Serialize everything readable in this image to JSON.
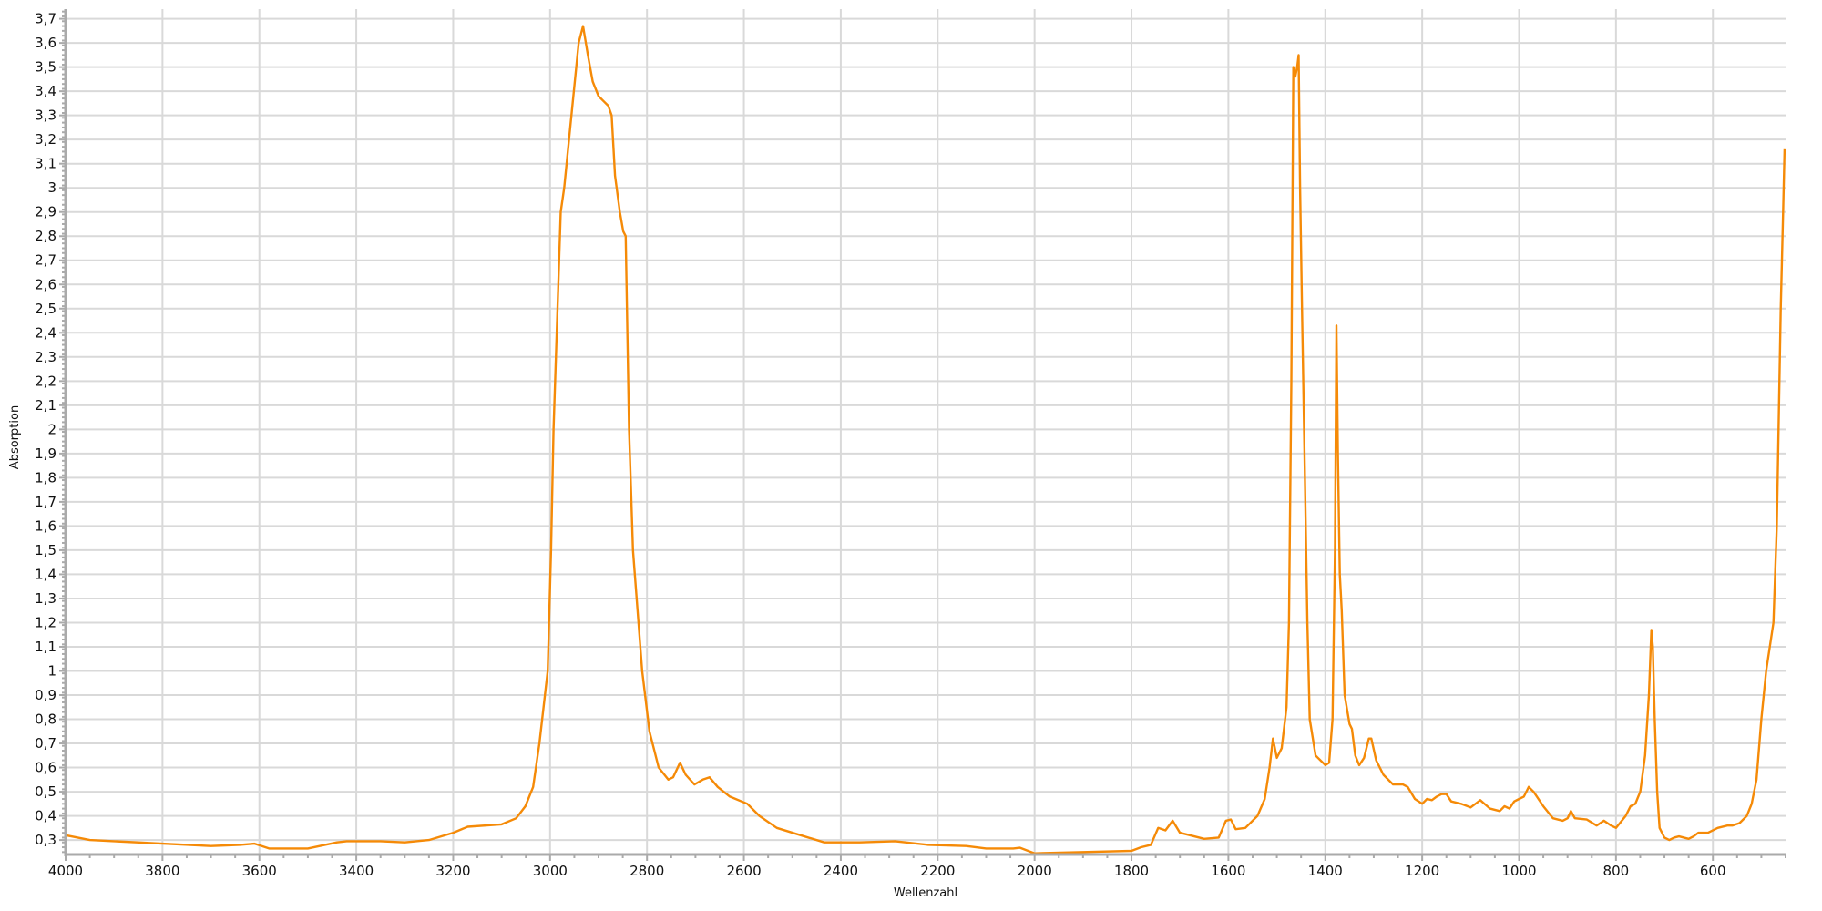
{
  "chart_data": {
    "type": "line",
    "title": "",
    "xlabel": "Wellenzahl",
    "ylabel": "Absorption",
    "xlim": [
      4000,
      450
    ],
    "x_reversed": true,
    "ylim": [
      0.24,
      3.74
    ],
    "x_ticks": [
      4000,
      3800,
      3600,
      3400,
      3200,
      3000,
      2800,
      2600,
      2400,
      2200,
      2000,
      1800,
      1600,
      1400,
      1200,
      1000,
      800,
      600
    ],
    "x_tick_labels": [
      "4000",
      "3800",
      "3600",
      "3400",
      "3200",
      "3000",
      "2800",
      "2600",
      "2400",
      "2200",
      "2000",
      "1800",
      "1600",
      "1400",
      "1200",
      "1000",
      "800",
      "600"
    ],
    "y_ticks": [
      0.3,
      0.4,
      0.5,
      0.6,
      0.7,
      0.8,
      0.9,
      1,
      1.1,
      1.2,
      1.3,
      1.4,
      1.5,
      1.6,
      1.7,
      1.8,
      1.9,
      2,
      2.1,
      2.2,
      2.3,
      2.4,
      2.5,
      2.6,
      2.7,
      2.8,
      2.9,
      3,
      3.1,
      3.2,
      3.3,
      3.4,
      3.5,
      3.6,
      3.7
    ],
    "y_tick_labels": [
      "0,3",
      "0,4",
      "0,5",
      "0,6",
      "0,7",
      "0,8",
      "0,9",
      "1",
      "1,1",
      "1,2",
      "1,3",
      "1,4",
      "1,5",
      "1,6",
      "1,7",
      "1,8",
      "1,9",
      "2",
      "2,1",
      "2,2",
      "2,3",
      "2,4",
      "2,5",
      "2,6",
      "2,7",
      "2,8",
      "2,9",
      "3",
      "3,1",
      "3,2",
      "3,3",
      "3,4",
      "3,5",
      "3,6",
      "3,7"
    ],
    "grid": true,
    "legend": "none",
    "series": [
      {
        "color": "#F58A07",
        "points": [
          [
            4000,
            0.32
          ],
          [
            3950,
            0.3
          ],
          [
            3900,
            0.295
          ],
          [
            3800,
            0.285
          ],
          [
            3700,
            0.275
          ],
          [
            3640,
            0.28
          ],
          [
            3610,
            0.285
          ],
          [
            3580,
            0.265
          ],
          [
            3500,
            0.265
          ],
          [
            3440,
            0.29
          ],
          [
            3420,
            0.295
          ],
          [
            3350,
            0.295
          ],
          [
            3300,
            0.29
          ],
          [
            3250,
            0.3
          ],
          [
            3200,
            0.33
          ],
          [
            3170,
            0.355
          ],
          [
            3100,
            0.365
          ],
          [
            3070,
            0.39
          ],
          [
            3051,
            0.44
          ],
          [
            3035,
            0.52
          ],
          [
            3022,
            0.7
          ],
          [
            3005,
            1.0
          ],
          [
            2998,
            1.5
          ],
          [
            2993,
            2.0
          ],
          [
            2978,
            2.9
          ],
          [
            2971,
            3.0
          ],
          [
            2961,
            3.2
          ],
          [
            2951,
            3.4
          ],
          [
            2941,
            3.6
          ],
          [
            2932,
            3.67
          ],
          [
            2922,
            3.55
          ],
          [
            2912,
            3.44
          ],
          [
            2900,
            3.38
          ],
          [
            2890,
            3.36
          ],
          [
            2880,
            3.34
          ],
          [
            2873,
            3.3
          ],
          [
            2866,
            3.05
          ],
          [
            2856,
            2.9
          ],
          [
            2849,
            2.82
          ],
          [
            2844,
            2.8
          ],
          [
            2837,
            2.0
          ],
          [
            2829,
            1.5
          ],
          [
            2810,
            1.0
          ],
          [
            2795,
            0.75
          ],
          [
            2776,
            0.6
          ],
          [
            2756,
            0.55
          ],
          [
            2746,
            0.56
          ],
          [
            2732,
            0.62
          ],
          [
            2720,
            0.57
          ],
          [
            2702,
            0.53
          ],
          [
            2685,
            0.55
          ],
          [
            2671,
            0.56
          ],
          [
            2654,
            0.52
          ],
          [
            2629,
            0.48
          ],
          [
            2593,
            0.45
          ],
          [
            2568,
            0.4
          ],
          [
            2532,
            0.35
          ],
          [
            2483,
            0.32
          ],
          [
            2434,
            0.29
          ],
          [
            2361,
            0.29
          ],
          [
            2288,
            0.295
          ],
          [
            2220,
            0.28
          ],
          [
            2141,
            0.275
          ],
          [
            2100,
            0.265
          ],
          [
            2044,
            0.265
          ],
          [
            2030,
            0.268
          ],
          [
            2000,
            0.245
          ],
          [
            1900,
            0.25
          ],
          [
            1800,
            0.255
          ],
          [
            1780,
            0.27
          ],
          [
            1760,
            0.28
          ],
          [
            1745,
            0.35
          ],
          [
            1730,
            0.34
          ],
          [
            1715,
            0.38
          ],
          [
            1700,
            0.33
          ],
          [
            1650,
            0.305
          ],
          [
            1620,
            0.31
          ],
          [
            1605,
            0.38
          ],
          [
            1595,
            0.385
          ],
          [
            1585,
            0.345
          ],
          [
            1565,
            0.35
          ],
          [
            1540,
            0.4
          ],
          [
            1525,
            0.47
          ],
          [
            1515,
            0.6
          ],
          [
            1508,
            0.72
          ],
          [
            1500,
            0.64
          ],
          [
            1490,
            0.68
          ],
          [
            1480,
            0.85
          ],
          [
            1475,
            1.2
          ],
          [
            1470,
            2.2
          ],
          [
            1466,
            3.5
          ],
          [
            1462,
            3.46
          ],
          [
            1458,
            3.5
          ],
          [
            1455,
            3.55
          ],
          [
            1452,
            3.0
          ],
          [
            1448,
            2.5
          ],
          [
            1442,
            1.8
          ],
          [
            1437,
            1.2
          ],
          [
            1432,
            0.8
          ],
          [
            1420,
            0.65
          ],
          [
            1400,
            0.61
          ],
          [
            1392,
            0.62
          ],
          [
            1385,
            0.8
          ],
          [
            1380,
            1.5
          ],
          [
            1377,
            2.43
          ],
          [
            1374,
            1.9
          ],
          [
            1370,
            1.4
          ],
          [
            1366,
            1.25
          ],
          [
            1360,
            0.9
          ],
          [
            1350,
            0.78
          ],
          [
            1345,
            0.76
          ],
          [
            1338,
            0.65
          ],
          [
            1330,
            0.61
          ],
          [
            1320,
            0.64
          ],
          [
            1310,
            0.72
          ],
          [
            1305,
            0.72
          ],
          [
            1295,
            0.63
          ],
          [
            1280,
            0.57
          ],
          [
            1260,
            0.53
          ],
          [
            1240,
            0.53
          ],
          [
            1230,
            0.52
          ],
          [
            1215,
            0.47
          ],
          [
            1200,
            0.45
          ],
          [
            1190,
            0.47
          ],
          [
            1180,
            0.465
          ],
          [
            1170,
            0.48
          ],
          [
            1160,
            0.49
          ],
          [
            1150,
            0.49
          ],
          [
            1140,
            0.46
          ],
          [
            1120,
            0.45
          ],
          [
            1100,
            0.435
          ],
          [
            1080,
            0.465
          ],
          [
            1060,
            0.43
          ],
          [
            1040,
            0.42
          ],
          [
            1030,
            0.44
          ],
          [
            1020,
            0.43
          ],
          [
            1010,
            0.46
          ],
          [
            1000,
            0.47
          ],
          [
            990,
            0.48
          ],
          [
            980,
            0.52
          ],
          [
            970,
            0.5
          ],
          [
            950,
            0.44
          ],
          [
            930,
            0.39
          ],
          [
            910,
            0.38
          ],
          [
            900,
            0.39
          ],
          [
            893,
            0.42
          ],
          [
            885,
            0.39
          ],
          [
            860,
            0.385
          ],
          [
            840,
            0.36
          ],
          [
            825,
            0.38
          ],
          [
            810,
            0.36
          ],
          [
            800,
            0.35
          ],
          [
            780,
            0.4
          ],
          [
            770,
            0.44
          ],
          [
            760,
            0.45
          ],
          [
            750,
            0.5
          ],
          [
            740,
            0.65
          ],
          [
            732,
            0.9
          ],
          [
            727,
            1.17
          ],
          [
            724,
            1.1
          ],
          [
            720,
            0.8
          ],
          [
            715,
            0.5
          ],
          [
            710,
            0.35
          ],
          [
            700,
            0.31
          ],
          [
            690,
            0.3
          ],
          [
            680,
            0.31
          ],
          [
            670,
            0.315
          ],
          [
            660,
            0.31
          ],
          [
            650,
            0.305
          ],
          [
            640,
            0.315
          ],
          [
            630,
            0.33
          ],
          [
            610,
            0.33
          ],
          [
            590,
            0.35
          ],
          [
            570,
            0.36
          ],
          [
            560,
            0.36
          ],
          [
            545,
            0.37
          ],
          [
            530,
            0.4
          ],
          [
            520,
            0.45
          ],
          [
            510,
            0.55
          ],
          [
            500,
            0.8
          ],
          [
            490,
            1.0
          ],
          [
            475,
            1.2
          ],
          [
            468,
            1.6
          ],
          [
            460,
            2.5
          ],
          [
            455,
            2.9
          ],
          [
            452,
            3.16
          ]
        ]
      }
    ]
  }
}
